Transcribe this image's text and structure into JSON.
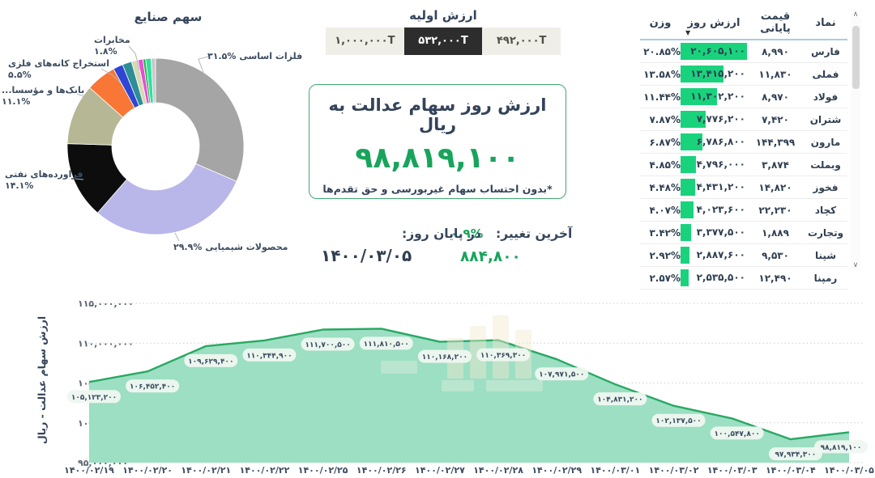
{
  "donut": {
    "title": "سهم صنایع",
    "callouts": {
      "metals": {
        "name": "فلزات اساسی",
        "pct": "۳۱.۵%"
      },
      "chemicals": {
        "name": "محصولات شیمیایی",
        "pct": "۲۹.۹%"
      },
      "oil": {
        "name": "فراورده‌های نفتی",
        "pct": "۱۴.۱%"
      },
      "banks": {
        "name": "بانک‌ها و مؤسسا...",
        "pct": "۱۱.۱%"
      },
      "mining": {
        "name": "استخراج کانه‌های فلزی",
        "pct": "۵.۵%"
      },
      "telecom": {
        "name": "مخابرات",
        "pct": "۱.۸%"
      }
    }
  },
  "initial_value": {
    "title": "ارزش اولیه",
    "tabs": [
      {
        "label": "۱,۰۰۰,۰۰۰T",
        "active": false
      },
      {
        "label": "۵۳۲,۰۰۰T",
        "active": true
      },
      {
        "label": "۴۹۲,۰۰۰T",
        "active": false
      }
    ]
  },
  "value_box": {
    "title": "ارزش روز سهام عدالت به ریال",
    "value": "۹۸,۸۱۹,۱۰۰",
    "note": "*بدون احتساب سهام غیربورسی و حق تقدم‌ها"
  },
  "change": {
    "label": "آخرین تغییر:",
    "pct": "۰.۹%",
    "amount": "۸۸۴,۸۰۰",
    "eod_label": "در پایان روز:",
    "date": "۱۴۰۰/۰۳/۰۵"
  },
  "table": {
    "headers": {
      "symbol": "نماد",
      "closing_price": "قیمت پایانی",
      "day_value": "ارزش روز",
      "weight": "وزن"
    },
    "sort_icon": "▼",
    "rows": [
      {
        "symbol": "فارس",
        "closing_price": "۸,۹۹۰",
        "day_value": "۲۰,۶۰۵,۱۰۰",
        "day_value_num": 20605100,
        "weight": "۲۰.۸۵%"
      },
      {
        "symbol": "فملی",
        "closing_price": "۱۱,۸۳۰",
        "day_value": "۱۳,۴۱۵,۲۰۰",
        "day_value_num": 13415200,
        "weight": "۱۳.۵۸%"
      },
      {
        "symbol": "فولاد",
        "closing_price": "۸,۹۷۰",
        "day_value": "۱۱,۳۰۲,۲۰۰",
        "day_value_num": 11302200,
        "weight": "۱۱.۴۴%"
      },
      {
        "symbol": "شتران",
        "closing_price": "۷,۴۲۰",
        "day_value": "۷,۷۷۶,۲۰۰",
        "day_value_num": 7776200,
        "weight": "۷.۸۷%"
      },
      {
        "symbol": "مارون",
        "closing_price": "۱۴۴,۳۹۹",
        "day_value": "۶,۷۸۶,۸۰۰",
        "day_value_num": 6786800,
        "weight": "۶.۸۷%"
      },
      {
        "symbol": "وبملت",
        "closing_price": "۳,۸۷۴",
        "day_value": "۴,۷۹۶,۰۰۰",
        "day_value_num": 4796000,
        "weight": "۴.۸۵%"
      },
      {
        "symbol": "فخوز",
        "closing_price": "۱۴,۸۲۰",
        "day_value": "۴,۴۳۱,۲۰۰",
        "day_value_num": 4431200,
        "weight": "۴.۴۸%"
      },
      {
        "symbol": "کچاد",
        "closing_price": "۲۲,۲۳۰",
        "day_value": "۴,۰۲۳,۶۰۰",
        "day_value_num": 4023600,
        "weight": "۴.۰۷%"
      },
      {
        "symbol": "وتجارت",
        "closing_price": "۱,۸۸۹",
        "day_value": "۳,۳۷۷,۵۰۰",
        "day_value_num": 3377500,
        "weight": "۳.۴۲%"
      },
      {
        "symbol": "شپنا",
        "closing_price": "۹,۵۳۰",
        "day_value": "۲,۸۸۷,۶۰۰",
        "day_value_num": 2887600,
        "weight": "۲.۹۲%"
      },
      {
        "symbol": "رمپنا",
        "closing_price": "۱۲,۴۹۰",
        "day_value": "۲,۵۳۵,۵۰۰",
        "day_value_num": 2535500,
        "weight": "۲.۵۷%"
      }
    ]
  },
  "scrollbar": {
    "up_icon": "∧",
    "down_icon": "∨"
  },
  "colors": {
    "accent_green": "#18a45c",
    "bar_green": "#19d37c",
    "line_green": "#28a863",
    "area_fill": "#9cdfc3",
    "navy_text": "#35455c",
    "tab_active_bg": "#2d2d2d",
    "header_underline": "#aacbe4"
  },
  "chart_data": [
    {
      "type": "pie",
      "title": "سهم صنایع",
      "unit": "%",
      "segments": [
        {
          "label": "فلزات اساسی",
          "value": 31.5,
          "color": "#a5a5a5"
        },
        {
          "label": "محصولات شیمیایی",
          "value": 29.9,
          "color": "#b9b7e9"
        },
        {
          "label": "فراورده‌های نفتی",
          "value": 14.1,
          "color": "#0d0d0d"
        },
        {
          "label": "بانک‌ها و مؤسسا...",
          "value": 11.1,
          "color": "#b6b795"
        },
        {
          "label": "استخراج کانه‌های فلزی",
          "value": 5.5,
          "color": "#f87636"
        },
        {
          "label": "مخابرات",
          "value": 1.8,
          "color": "#2e46d3"
        },
        {
          "label": "",
          "value": 1.7,
          "color": "#2d8e95"
        },
        {
          "label": "",
          "value": 1.2,
          "color": "#d8d8b4"
        },
        {
          "label": "",
          "value": 0.9,
          "color": "#e34fd3"
        },
        {
          "label": "",
          "value": 0.5,
          "color": "#2eb34e"
        },
        {
          "label": "",
          "value": 1.0,
          "color": "#2ee0a0"
        },
        {
          "label": "",
          "value": 0.8,
          "color": "#c9c9c9"
        }
      ]
    },
    {
      "type": "area",
      "ylabel": "ارزش سهام عدالت - ریال",
      "x": [
        "۱۴۰۰/۰۲/۱۹",
        "۱۴۰۰/۰۲/۲۰",
        "۱۴۰۰/۰۲/۲۱",
        "۱۴۰۰/۰۲/۲۲",
        "۱۴۰۰/۰۲/۲۵",
        "۱۴۰۰/۰۲/۲۶",
        "۱۴۰۰/۰۲/۲۷",
        "۱۴۰۰/۰۲/۲۸",
        "۱۴۰۰/۰۲/۲۹",
        "۱۴۰۰/۰۳/۰۱",
        "۱۴۰۰/۰۳/۰۲",
        "۱۴۰۰/۰۳/۰۳",
        "۱۴۰۰/۰۳/۰۴",
        "۱۴۰۰/۰۳/۰۵"
      ],
      "values": [
        105123200,
        106452400,
        109629400,
        110344900,
        111700500,
        111810500,
        110168200,
        110369300,
        107971500,
        104831200,
        102137500,
        100547800,
        97934300,
        98819100
      ],
      "point_labels": [
        "۱۰۵,۱۲۳,۲۰۰",
        "۱۰۶,۴۵۲,۴۰۰",
        "۱۰۹,۶۲۹,۴۰۰",
        "۱۱۰,۳۴۴,۹۰۰",
        "۱۱۱,۷۰۰,۵۰۰",
        "۱۱۱,۸۱۰,۵۰۰",
        "۱۱۰,۱۶۸,۲۰۰",
        "۱۱۰,۳۶۹,۳۰۰",
        "۱۰۷,۹۷۱,۵۰۰",
        "۱۰۴,۸۳۱,۲۰۰",
        "۱۰۲,۱۳۷,۵۰۰",
        "۱۰۰,۵۴۷,۸۰۰",
        "۹۷,۹۳۴,۳۰۰",
        "۹۸,۸۱۹,۱۰۰"
      ],
      "ylim": [
        95000000,
        115000000
      ],
      "ytick_values": [
        115000000,
        110000000,
        105000000,
        100000000,
        95000000
      ],
      "ytick_labels": [
        "۱۱۵,۰۰۰,۰۰۰",
        "۱۱۰,۰۰۰,۰۰۰",
        "۱۰۵,۰۰۰,۰۰۰",
        "۱۰۰,۰۰۰,۰۰۰",
        "۹۵,۰۰۰,۰۰۰"
      ],
      "grid": true,
      "legend": "none"
    }
  ]
}
